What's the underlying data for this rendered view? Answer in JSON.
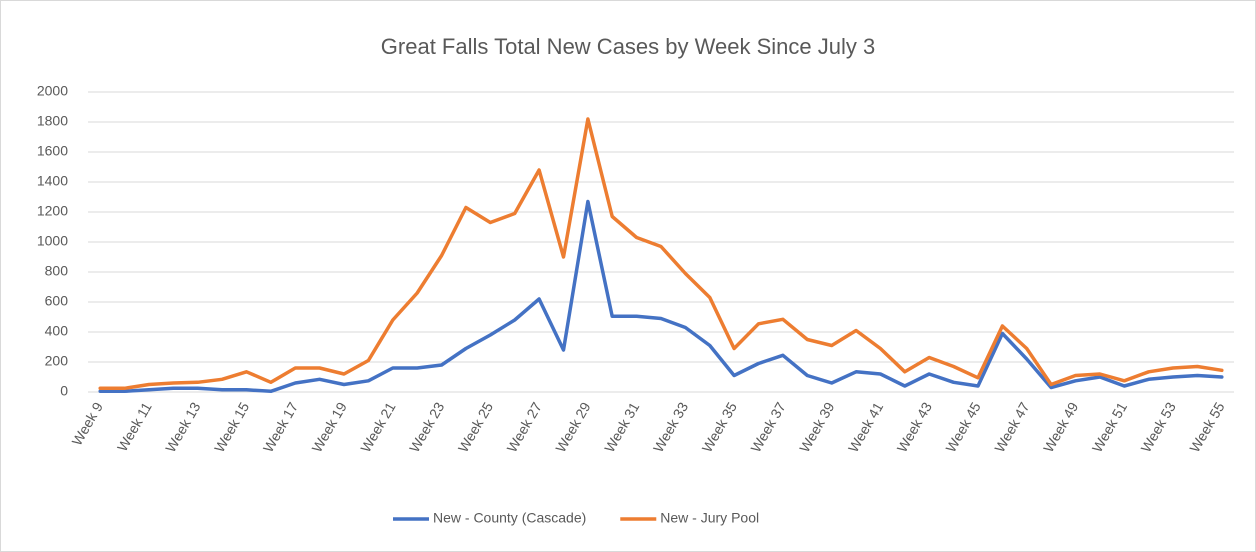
{
  "chart_data": {
    "type": "line",
    "title": "Great Falls Total New Cases by Week Since July 3",
    "categories": [
      "Week 9",
      null,
      "Week 11",
      null,
      "Week 13",
      null,
      "Week 15",
      null,
      "Week 17",
      null,
      "Week 19",
      null,
      "Week 21",
      null,
      "Week 23",
      null,
      "Week 25",
      null,
      "Week 27",
      null,
      "Week 29",
      null,
      "Week 31",
      null,
      "Week 33",
      null,
      "Week 35",
      null,
      "Week 37",
      null,
      "Week 39",
      null,
      "Week 41",
      null,
      "Week 43",
      null,
      "Week 45",
      null,
      "Week 47",
      null,
      "Week 49",
      null,
      "Week 51",
      null,
      "Week 53",
      null,
      "Week 55"
    ],
    "series": [
      {
        "name": "New - County (Cascade)",
        "color": "#4472c4",
        "values": [
          5,
          5,
          15,
          25,
          25,
          15,
          15,
          5,
          60,
          85,
          50,
          75,
          160,
          160,
          180,
          290,
          380,
          480,
          620,
          280,
          1270,
          505,
          505,
          490,
          430,
          310,
          110,
          190,
          245,
          110,
          60,
          135,
          120,
          40,
          120,
          65,
          40,
          390,
          220,
          30,
          75,
          100,
          40,
          85,
          100,
          110,
          100
        ]
      },
      {
        "name": "New - Jury Pool",
        "color": "#ed7d31",
        "values": [
          25,
          25,
          50,
          60,
          65,
          85,
          135,
          65,
          160,
          160,
          120,
          210,
          480,
          660,
          910,
          1230,
          1130,
          1190,
          1480,
          900,
          1820,
          1170,
          1030,
          970,
          790,
          630,
          290,
          455,
          485,
          350,
          310,
          410,
          290,
          135,
          230,
          170,
          95,
          440,
          290,
          50,
          110,
          120,
          75,
          135,
          160,
          170,
          145
        ]
      }
    ],
    "ylim": [
      0,
      2000
    ],
    "yticks": [
      0,
      200,
      400,
      600,
      800,
      1000,
      1200,
      1400,
      1600,
      1800,
      2000
    ],
    "grid": true,
    "legend": "bottom"
  }
}
